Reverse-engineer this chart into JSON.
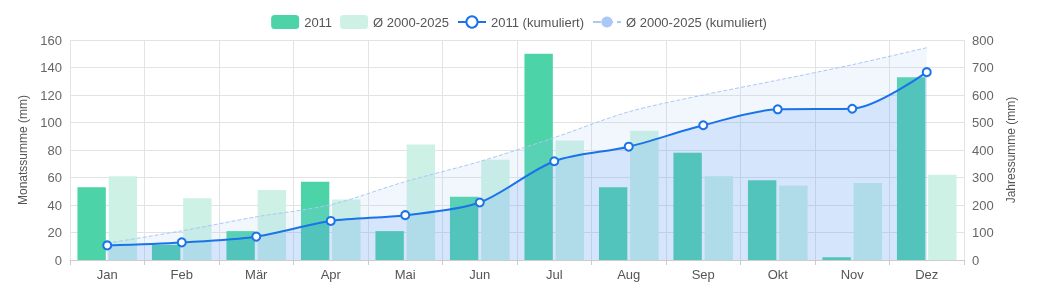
{
  "chart_data": {
    "type": "bar",
    "ylabel": "Monatssumme (mm)",
    "y2label": "Jahressumme (mm)",
    "categories": [
      "Jan",
      "Feb",
      "Mär",
      "Apr",
      "Mai",
      "Jun",
      "Jul",
      "Aug",
      "Sep",
      "Okt",
      "Nov",
      "Dez"
    ],
    "series": [
      {
        "name": "2011",
        "color": "#4cd3a8",
        "values": [
          53,
          11,
          21,
          57,
          21,
          46,
          150,
          53,
          78,
          58,
          2,
          133
        ]
      },
      {
        "name": "Ø 2000-2025",
        "color": "#cdf1e4",
        "values": [
          61,
          45,
          51,
          44,
          84,
          73,
          87,
          94,
          61,
          54,
          56,
          62
        ]
      },
      {
        "name": "2011 (kumuliert)",
        "type": "area",
        "axis": "y2",
        "color": "#1a73e8",
        "marker": "circle",
        "line_style": "solid",
        "values": [
          53,
          64,
          85,
          142,
          163,
          209,
          359,
          412,
          490,
          548,
          550,
          683
        ]
      },
      {
        "name": "Ø 2000-2025 (kumuliert)",
        "type": "area",
        "axis": "y2",
        "color": "#a9c8f5",
        "marker": "none",
        "line_style": "dashed",
        "values": [
          61,
          106,
          157,
          201,
          285,
          358,
          445,
          539,
          600,
          654,
          710,
          772
        ]
      }
    ],
    "ylim": [
      0,
      160
    ],
    "yticks": [
      0,
      20,
      40,
      60,
      80,
      100,
      120,
      140,
      160
    ],
    "y2lim": [
      0,
      800
    ],
    "y2ticks": [
      0,
      100,
      200,
      300,
      400,
      500,
      600,
      700,
      800
    ],
    "grid": true,
    "legend": "top"
  }
}
